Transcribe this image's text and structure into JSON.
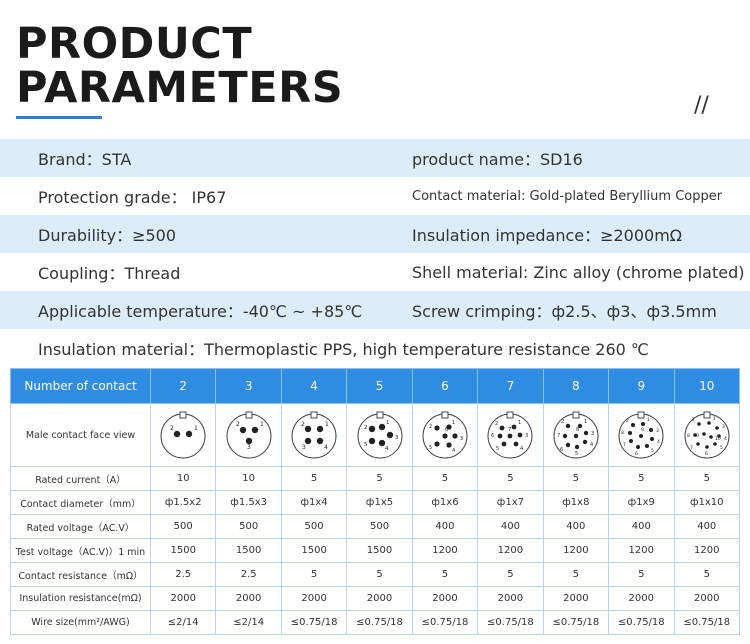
{
  "header": {
    "title_line1": "PRODUCT",
    "title_line2": "PARAMETERS",
    "slash": "//"
  },
  "params": [
    {
      "left": "Brand：STA",
      "right": "product name：SD16"
    },
    {
      "left": "Protection grade： IP67",
      "right": "Contact material: Gold-plated Beryllium Copper"
    },
    {
      "left": "Durability：≥500",
      "right": "Insulation impedance：≥2000mΩ"
    },
    {
      "left": "Coupling：Thread",
      "right": "Shell material: Zinc alloy (chrome plated)"
    },
    {
      "left": "Applicable temperature：-40℃ ~ +85℃",
      "right": "Screw crimping：ф2.5、ф3、ф3.5mm"
    },
    {
      "left": "Insulation material：Thermoplastic PPS, high temperature resistance 260 ℃"
    }
  ],
  "table": {
    "header_label": "Number of contact",
    "contacts": [
      "2",
      "3",
      "4",
      "5",
      "6",
      "7",
      "8",
      "9",
      "10"
    ],
    "face_label": "Male contact face view",
    "rows": [
      {
        "label": "Rated current（A）",
        "values": [
          "10",
          "10",
          "5",
          "5",
          "5",
          "5",
          "5",
          "5",
          "5"
        ]
      },
      {
        "label": "Contact diameter（mm）",
        "values": [
          "ф1.5x2",
          "ф1.5x3",
          "ф1x4",
          "ф1x5",
          "ф1x6",
          "ф1x7",
          "ф1x8",
          "ф1x9",
          "ф1x10"
        ]
      },
      {
        "label": "Rated voltage（AC.V）",
        "values": [
          "500",
          "500",
          "500",
          "500",
          "400",
          "400",
          "400",
          "400",
          "400"
        ]
      },
      {
        "label": "Test voltage（AC.V)）1 min",
        "values": [
          "1500",
          "1500",
          "1500",
          "1500",
          "1200",
          "1200",
          "1200",
          "1200",
          "1200"
        ]
      },
      {
        "label": "Contact resistance（mΩ）",
        "values": [
          "2.5",
          "2.5",
          "5",
          "5",
          "5",
          "5",
          "5",
          "5",
          "5"
        ]
      },
      {
        "label": "Insulation resistance(mΩ)",
        "values": [
          "2000",
          "2000",
          "2000",
          "2000",
          "2000",
          "2000",
          "2000",
          "2000",
          "2000"
        ]
      },
      {
        "label": "Wire size(mm²/AWG)",
        "values": [
          "≤2/14",
          "≤2/14",
          "≤0.75/18",
          "≤0.75/18",
          "≤0.75/18",
          "≤0.75/18",
          "≤0.75/18",
          "≤0.75/18",
          "≤0.75/18"
        ]
      }
    ],
    "faces": [
      {
        "pins": [
          "2",
          "1"
        ]
      },
      {
        "pins": [
          "2",
          "1",
          "3"
        ]
      },
      {
        "pins": [
          "2",
          "1",
          "3",
          "4"
        ]
      },
      {
        "pins": [
          "2",
          "1",
          "3",
          "4",
          "5"
        ]
      },
      {
        "pins": [
          "2",
          "1",
          "3",
          "4",
          "5",
          "6"
        ]
      },
      {
        "pins": [
          "2",
          "1",
          "3",
          "4",
          "5",
          "6",
          "7"
        ]
      },
      {
        "pins": [
          "2",
          "1",
          "3",
          "4",
          "5",
          "6",
          "7",
          "8"
        ]
      },
      {
        "pins": [
          "2",
          "1",
          "3",
          "4",
          "5",
          "6",
          "7",
          "8",
          "9"
        ]
      },
      {
        "pins": [
          "2",
          "1",
          "3",
          "4",
          "5",
          "6",
          "7",
          "8",
          "9",
          "10"
        ]
      }
    ]
  }
}
